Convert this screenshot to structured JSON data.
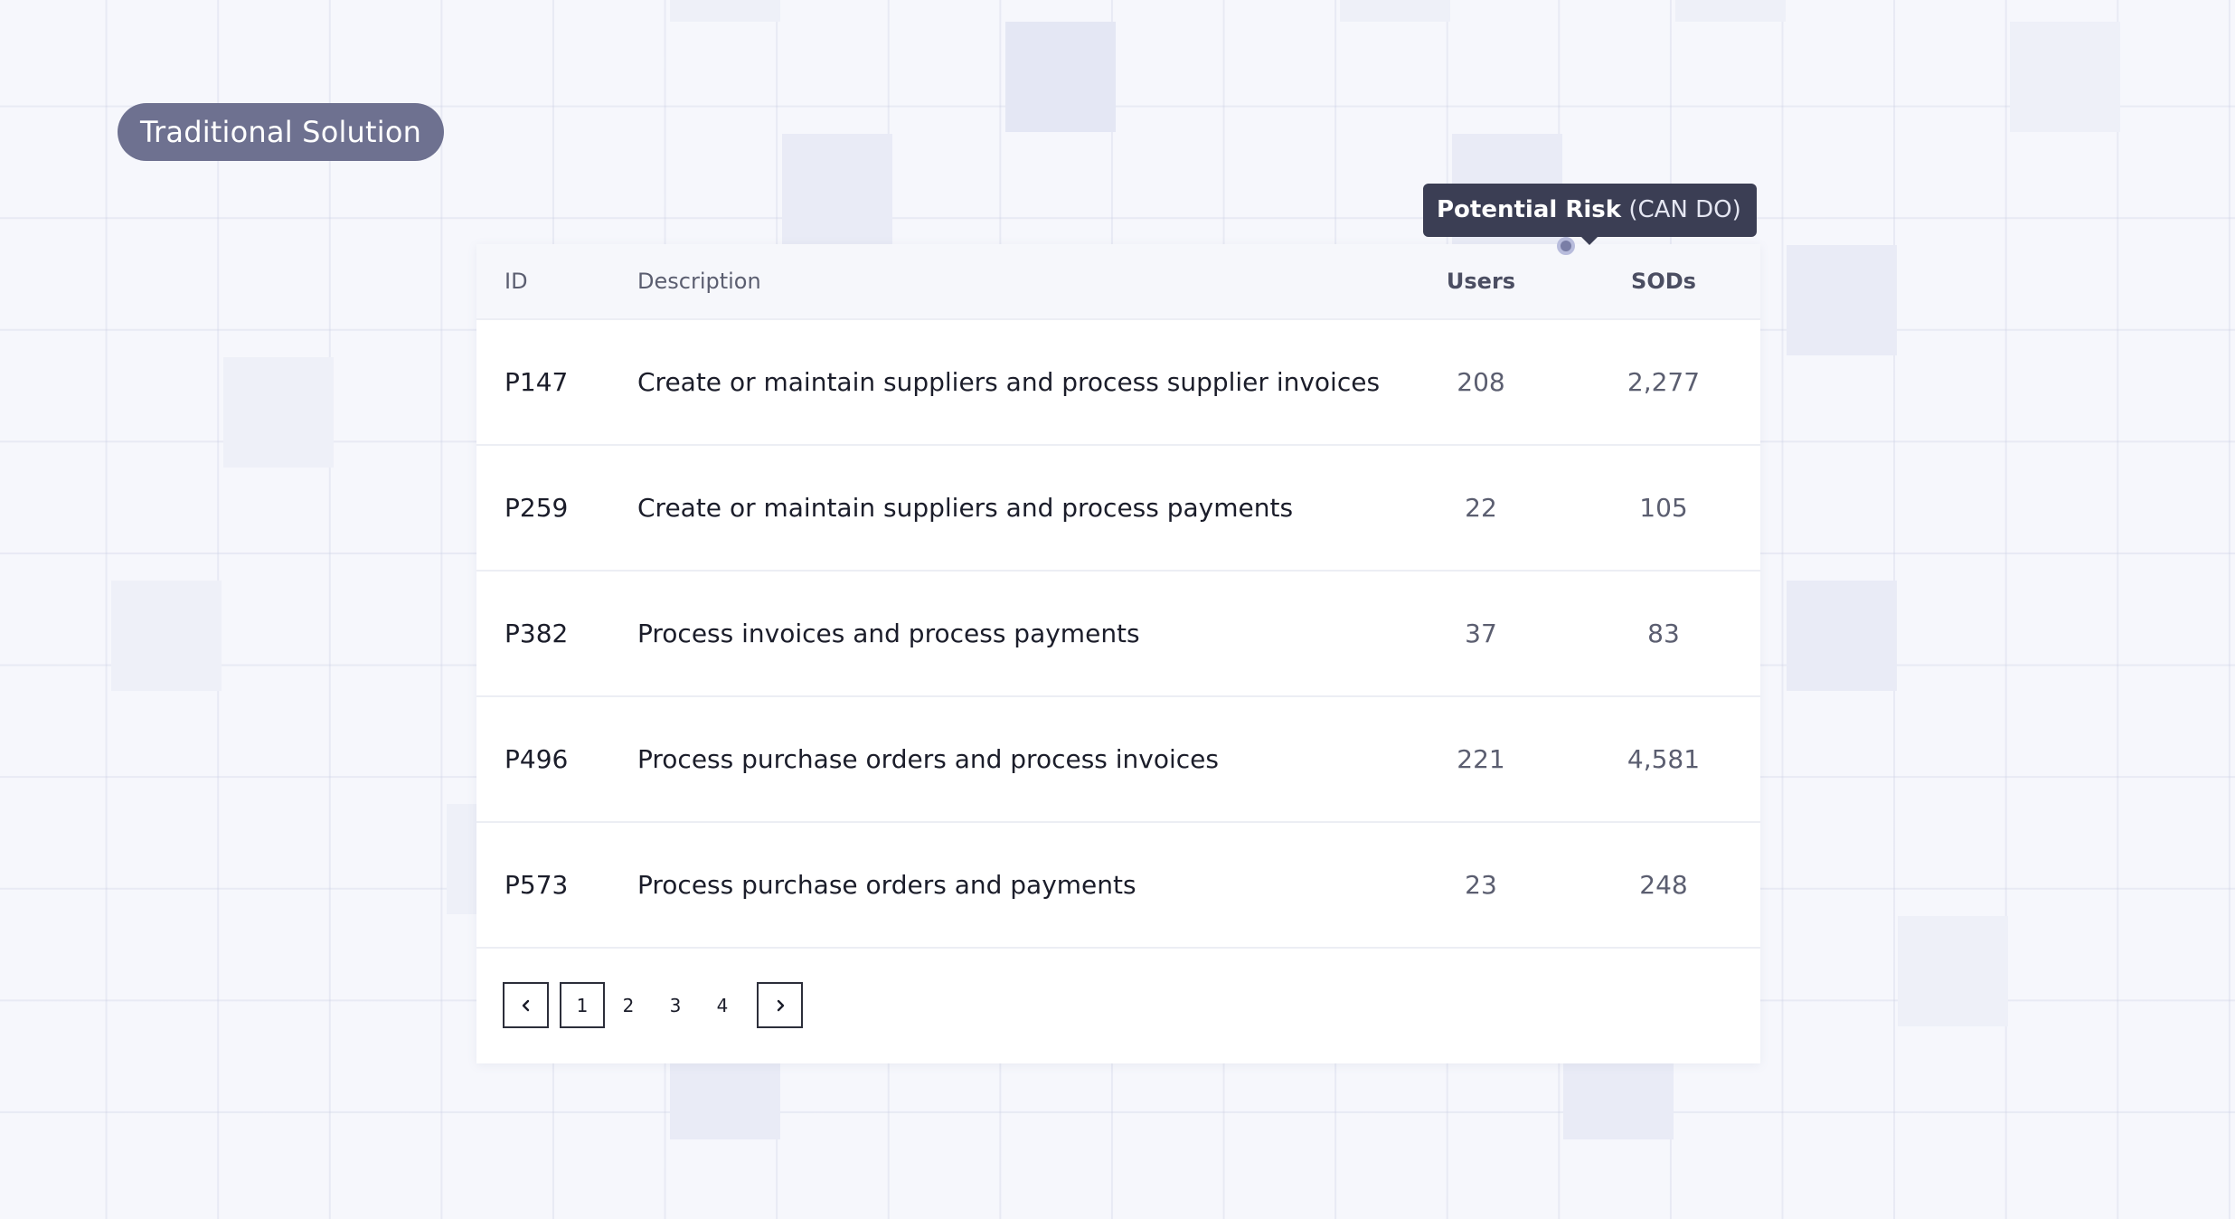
{
  "badge": {
    "label": "Traditional Solution"
  },
  "tooltip": {
    "title": "Potential Risk",
    "subtitle": "(CAN DO)"
  },
  "table": {
    "columns": {
      "id": "ID",
      "description": "Description",
      "users": "Users",
      "sods": "SODs"
    },
    "rows": [
      {
        "id": "P147",
        "description": "Create or maintain suppliers and process supplier invoices",
        "users": "208",
        "sods": "2,277"
      },
      {
        "id": "P259",
        "description": "Create or maintain suppliers and process payments",
        "users": "22",
        "sods": "105"
      },
      {
        "id": "P382",
        "description": "Process invoices and process payments",
        "users": "37",
        "sods": "83"
      },
      {
        "id": "P496",
        "description": "Process purchase orders and process invoices",
        "users": "221",
        "sods": "4,581"
      },
      {
        "id": "P573",
        "description": "Process purchase orders and payments",
        "users": "23",
        "sods": "248"
      }
    ]
  },
  "pagination": {
    "prev_icon": "chevron-left-icon",
    "next_icon": "chevron-right-icon",
    "pages": [
      "1",
      "2",
      "3",
      "4"
    ],
    "current_page": "1"
  }
}
